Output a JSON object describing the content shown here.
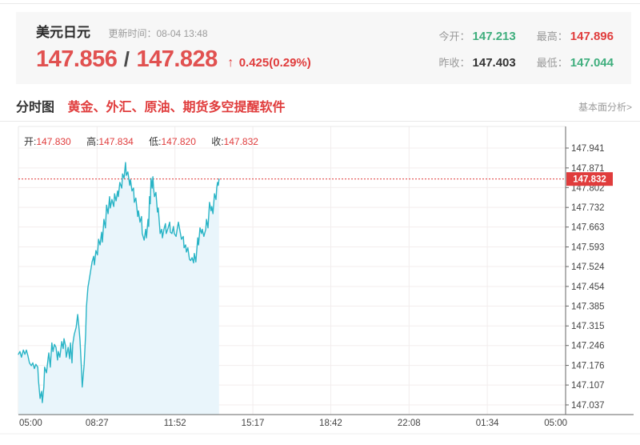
{
  "colors": {
    "accent_red": "#e03c3c",
    "price_red": "#e15150",
    "green": "#3fae7d",
    "dark": "#333333",
    "gray": "#999999",
    "line": "#29b4c6",
    "fill": "#e9f5fb"
  },
  "header": {
    "pair_name": "美元日元",
    "update_label": "更新时间：",
    "update_time": "08-04 13:48",
    "bid": "147.856",
    "separator": "/",
    "ask": "147.828",
    "up_arrow": "↑",
    "change": "0.425(0.29%)",
    "stats": [
      {
        "label": "今开：",
        "value": "147.213",
        "color": "green"
      },
      {
        "label": "最高：",
        "value": "147.896",
        "color": "red"
      },
      {
        "label": "昨收：",
        "value": "147.403",
        "color": "dark"
      },
      {
        "label": "最低：",
        "value": "147.044",
        "color": "green"
      }
    ]
  },
  "section": {
    "tab_label": "分时图",
    "promo_text": "黄金、外汇、原油、期货多空提醒软件",
    "analysis_link": "基本面分析>"
  },
  "chart_data": {
    "type": "area",
    "title": "分时图 (USD/JPY intraday)",
    "legend": {
      "open_label": "开:",
      "open": "147.830",
      "high_label": "高:",
      "high": "147.834",
      "low_label": "低:",
      "low": "147.820",
      "close_label": "收:",
      "close": "147.832"
    },
    "current_price": 147.832,
    "current_price_label": "147.832",
    "x_total_minutes": 1440,
    "x_ticks": [
      {
        "label": "05:00",
        "t": 0
      },
      {
        "label": "08:27",
        "t": 207
      },
      {
        "label": "11:52",
        "t": 412
      },
      {
        "label": "15:17",
        "t": 617
      },
      {
        "label": "18:42",
        "t": 822
      },
      {
        "label": "22:08",
        "t": 1028
      },
      {
        "label": "01:34",
        "t": 1234
      },
      {
        "label": "05:00",
        "t": 1440
      }
    ],
    "y_ticks": [
      "147.941",
      "147.871",
      "147.802",
      "147.732",
      "147.663",
      "147.593",
      "147.524",
      "147.454",
      "147.385",
      "147.315",
      "147.246",
      "147.176",
      "147.107",
      "147.037"
    ],
    "ylim": [
      147.003,
      148.017
    ],
    "grid": true,
    "line_color": "#29b4c6",
    "fill_color": "#e9f5fb",
    "series": [
      [
        0,
        147.215
      ],
      [
        4,
        147.225
      ],
      [
        8,
        147.205
      ],
      [
        13,
        147.23
      ],
      [
        17,
        147.215
      ],
      [
        21,
        147.23
      ],
      [
        25,
        147.21
      ],
      [
        29,
        147.185
      ],
      [
        34,
        147.175
      ],
      [
        38,
        147.185
      ],
      [
        42,
        147.165
      ],
      [
        46,
        147.18
      ],
      [
        51,
        147.17
      ],
      [
        53,
        147.12
      ],
      [
        57,
        147.06
      ],
      [
        61,
        147.085
      ],
      [
        63,
        147.045
      ],
      [
        67,
        147.1
      ],
      [
        69,
        147.17
      ],
      [
        74,
        147.15
      ],
      [
        78,
        147.2
      ],
      [
        80,
        147.22
      ],
      [
        84,
        147.17
      ],
      [
        88,
        147.255
      ],
      [
        91,
        147.225
      ],
      [
        95,
        147.25
      ],
      [
        99,
        147.24
      ],
      [
        103,
        147.195
      ],
      [
        105,
        147.225
      ],
      [
        109,
        147.205
      ],
      [
        114,
        147.26
      ],
      [
        118,
        147.235
      ],
      [
        120,
        147.27
      ],
      [
        124,
        147.245
      ],
      [
        126,
        147.205
      ],
      [
        131,
        147.24
      ],
      [
        135,
        147.2
      ],
      [
        137,
        147.255
      ],
      [
        141,
        147.185
      ],
      [
        143,
        147.25
      ],
      [
        147,
        147.285
      ],
      [
        152,
        147.31
      ],
      [
        156,
        147.355
      ],
      [
        160,
        147.3
      ],
      [
        162,
        147.265
      ],
      [
        166,
        147.16
      ],
      [
        168,
        147.1
      ],
      [
        173,
        147.18
      ],
      [
        177,
        147.29
      ],
      [
        179,
        147.38
      ],
      [
        183,
        147.45
      ],
      [
        189,
        147.5
      ],
      [
        194,
        147.54
      ],
      [
        198,
        147.56
      ],
      [
        200,
        147.53
      ],
      [
        204,
        147.58
      ],
      [
        208,
        147.565
      ],
      [
        211,
        147.62
      ],
      [
        215,
        147.6
      ],
      [
        219,
        147.645
      ],
      [
        221,
        147.61
      ],
      [
        225,
        147.69
      ],
      [
        229,
        147.66
      ],
      [
        232,
        147.74
      ],
      [
        236,
        147.71
      ],
      [
        240,
        147.77
      ],
      [
        242,
        147.73
      ],
      [
        246,
        147.76
      ],
      [
        251,
        147.735
      ],
      [
        253,
        147.78
      ],
      [
        257,
        147.755
      ],
      [
        261,
        147.79
      ],
      [
        263,
        147.77
      ],
      [
        267,
        147.82
      ],
      [
        272,
        147.8
      ],
      [
        274,
        147.85
      ],
      [
        278,
        147.835
      ],
      [
        282,
        147.89
      ],
      [
        284,
        147.845
      ],
      [
        288,
        147.857
      ],
      [
        293,
        147.81
      ],
      [
        295,
        147.83
      ],
      [
        299,
        147.79
      ],
      [
        303,
        147.8
      ],
      [
        305,
        147.75
      ],
      [
        309,
        147.765
      ],
      [
        314,
        147.7
      ],
      [
        316,
        147.72
      ],
      [
        320,
        147.68
      ],
      [
        324,
        147.7
      ],
      [
        326,
        147.64
      ],
      [
        331,
        147.617
      ],
      [
        335,
        147.655
      ],
      [
        337,
        147.625
      ],
      [
        341,
        147.69
      ],
      [
        343,
        147.665
      ],
      [
        345,
        147.77
      ],
      [
        347,
        147.745
      ],
      [
        349,
        147.834
      ],
      [
        352,
        147.8
      ],
      [
        354,
        147.84
      ],
      [
        356,
        147.795
      ],
      [
        358,
        147.77
      ],
      [
        362,
        147.785
      ],
      [
        366,
        147.716
      ],
      [
        368,
        147.73
      ],
      [
        373,
        147.64
      ],
      [
        377,
        147.655
      ],
      [
        379,
        147.625
      ],
      [
        383,
        147.655
      ],
      [
        387,
        147.675
      ],
      [
        389,
        147.64
      ],
      [
        394,
        147.66
      ],
      [
        398,
        147.68
      ],
      [
        400,
        147.645
      ],
      [
        404,
        147.64
      ],
      [
        408,
        147.665
      ],
      [
        410,
        147.64
      ],
      [
        415,
        147.63
      ],
      [
        419,
        147.665
      ],
      [
        421,
        147.68
      ],
      [
        425,
        147.65
      ],
      [
        429,
        147.62
      ],
      [
        434,
        147.63
      ],
      [
        436,
        147.59
      ],
      [
        440,
        147.6
      ],
      [
        442,
        147.575
      ],
      [
        446,
        147.59
      ],
      [
        450,
        147.55
      ],
      [
        453,
        147.545
      ],
      [
        457,
        147.555
      ],
      [
        461,
        147.537
      ],
      [
        463,
        147.57
      ],
      [
        467,
        147.54
      ],
      [
        472,
        147.625
      ],
      [
        474,
        147.6
      ],
      [
        478,
        147.66
      ],
      [
        482,
        147.64
      ],
      [
        484,
        147.655
      ],
      [
        488,
        147.63
      ],
      [
        493,
        147.655
      ],
      [
        495,
        147.69
      ],
      [
        499,
        147.66
      ],
      [
        503,
        147.75
      ],
      [
        507,
        147.72
      ],
      [
        509,
        147.735
      ],
      [
        512,
        147.71
      ],
      [
        516,
        147.78
      ],
      [
        520,
        147.76
      ],
      [
        522,
        147.8
      ],
      [
        524,
        147.82
      ],
      [
        526,
        147.81
      ],
      [
        528,
        147.832
      ]
    ]
  }
}
